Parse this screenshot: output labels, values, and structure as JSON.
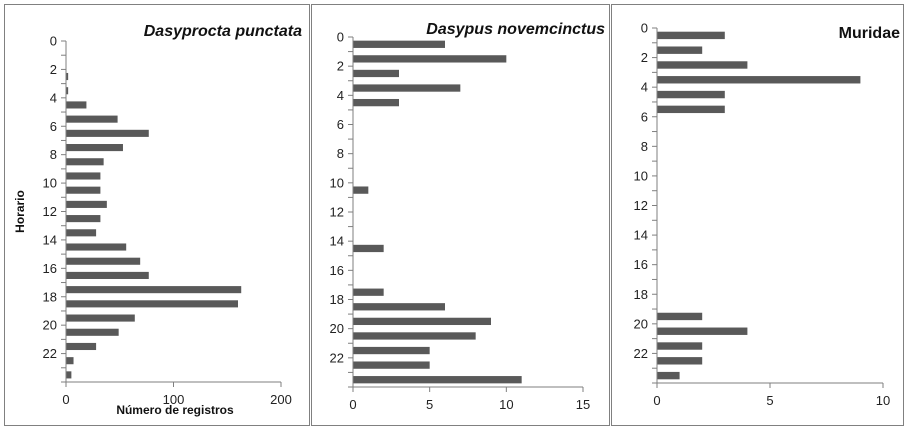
{
  "chart_data": [
    {
      "type": "bar",
      "orientation": "horizontal",
      "title": "Dasyprocta punctata",
      "title_style": "italic",
      "xlabel": "Número de registros",
      "ylabel": "Horario",
      "categories": [
        0,
        1,
        2,
        3,
        4,
        5,
        6,
        7,
        8,
        9,
        10,
        11,
        12,
        13,
        14,
        15,
        16,
        17,
        18,
        19,
        20,
        21,
        22,
        23
      ],
      "values": [
        0,
        0,
        2,
        2,
        19,
        48,
        77,
        53,
        35,
        32,
        32,
        38,
        32,
        28,
        56,
        69,
        77,
        163,
        160,
        64,
        49,
        28,
        7,
        5
      ],
      "xlim": [
        0,
        200
      ],
      "xticks": [
        0,
        100,
        200
      ],
      "yticks": [
        0,
        2,
        4,
        6,
        8,
        10,
        12,
        14,
        16,
        18,
        20,
        22
      ],
      "y_axis_reversed": true,
      "bar_color": "#595959"
    },
    {
      "type": "bar",
      "orientation": "horizontal",
      "title": "Dasypus novemcinctus",
      "title_style": "italic",
      "categories": [
        0,
        1,
        2,
        3,
        4,
        5,
        6,
        7,
        8,
        9,
        10,
        11,
        12,
        13,
        14,
        15,
        16,
        17,
        18,
        19,
        20,
        21,
        22,
        23
      ],
      "values": [
        6,
        10,
        3,
        7,
        3,
        0,
        0,
        0,
        0,
        0,
        1,
        0,
        0,
        0,
        2,
        0,
        0,
        2,
        6,
        9,
        8,
        5,
        5,
        11
      ],
      "xlim": [
        0,
        15
      ],
      "xticks": [
        0,
        5,
        10,
        15
      ],
      "yticks": [
        0,
        2,
        4,
        6,
        8,
        10,
        12,
        14,
        16,
        18,
        20,
        22
      ],
      "y_axis_reversed": true,
      "bar_color": "#595959"
    },
    {
      "type": "bar",
      "orientation": "horizontal",
      "title": "Muridae",
      "title_style": "normal",
      "categories": [
        0,
        1,
        2,
        3,
        4,
        5,
        6,
        7,
        8,
        9,
        10,
        11,
        12,
        13,
        14,
        15,
        16,
        17,
        18,
        19,
        20,
        21,
        22,
        23
      ],
      "values": [
        3,
        2,
        4,
        9,
        3,
        3,
        0,
        0,
        0,
        0,
        0,
        0,
        0,
        0,
        0,
        0,
        0,
        0,
        0,
        2,
        4,
        2,
        2,
        1
      ],
      "xlim": [
        0,
        10
      ],
      "xticks": [
        0,
        5,
        10
      ],
      "yticks": [
        0,
        2,
        4,
        6,
        8,
        10,
        12,
        14,
        16,
        18,
        20,
        22
      ],
      "y_axis_reversed": true,
      "bar_color": "#595959"
    }
  ]
}
